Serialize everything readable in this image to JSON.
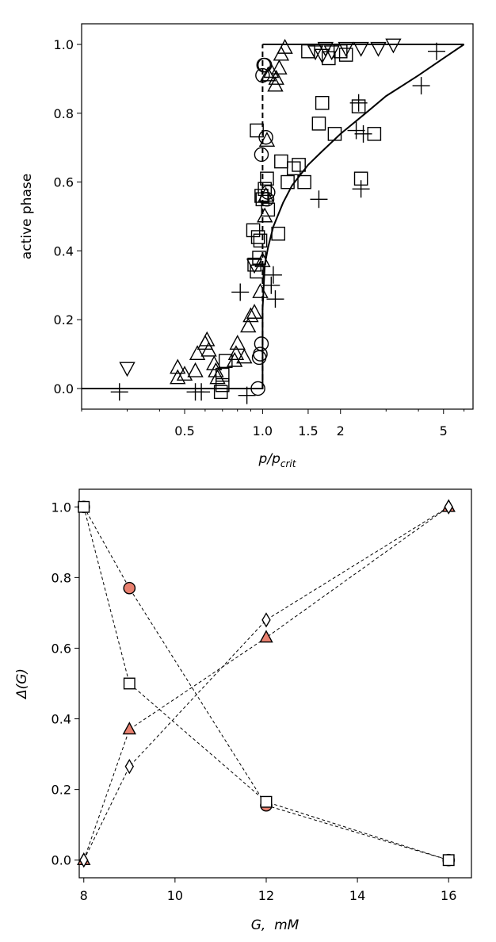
{
  "chart_data": [
    {
      "type": "scatter",
      "xscale": "log",
      "xlabel": "p/p_crit",
      "xlabel_main": "p/p",
      "xlabel_sub": "crit",
      "ylabel": "active phase",
      "xlim": [
        0.2,
        6.5
      ],
      "ylim": [
        -0.06,
        1.06
      ],
      "xticks": [
        0.5,
        1.0,
        1.5,
        2,
        5
      ],
      "xtick_labels": [
        "0.5",
        "1.0",
        "1.5",
        "2",
        "5"
      ],
      "yticks": [
        0.0,
        0.2,
        0.4,
        0.6,
        0.8,
        1.0
      ],
      "ytick_labels": [
        "0.0",
        "0.2",
        "0.4",
        "0.6",
        "0.8",
        "1.0"
      ],
      "series": [
        {
          "marker": "circle",
          "points": [
            [
              0.96,
              0.0
            ],
            [
              0.97,
              0.09
            ],
            [
              0.98,
              0.1
            ],
            [
              0.99,
              0.13
            ],
            [
              0.99,
              0.68
            ],
            [
              1.0,
              0.91
            ],
            [
              1.01,
              0.94
            ],
            [
              1.02,
              0.94
            ],
            [
              1.03,
              0.73
            ],
            [
              1.04,
              0.55
            ],
            [
              1.05,
              0.57
            ]
          ]
        },
        {
          "marker": "triangle-up",
          "points": [
            [
              0.47,
              0.03
            ],
            [
              0.47,
              0.06
            ],
            [
              0.5,
              0.04
            ],
            [
              0.55,
              0.05
            ],
            [
              0.56,
              0.1
            ],
            [
              0.6,
              0.13
            ],
            [
              0.61,
              0.14
            ],
            [
              0.62,
              0.11
            ],
            [
              0.65,
              0.07
            ],
            [
              0.66,
              0.05
            ],
            [
              0.67,
              0.03
            ],
            [
              0.78,
              0.08
            ],
            [
              0.79,
              0.1
            ],
            [
              0.8,
              0.13
            ],
            [
              0.85,
              0.09
            ],
            [
              0.88,
              0.18
            ],
            [
              0.9,
              0.21
            ],
            [
              0.93,
              0.22
            ],
            [
              0.98,
              0.28
            ],
            [
              1.0,
              0.37
            ],
            [
              1.02,
              0.5
            ],
            [
              1.03,
              0.56
            ],
            [
              1.04,
              0.72
            ],
            [
              1.05,
              0.91
            ],
            [
              1.08,
              0.92
            ],
            [
              1.12,
              0.88
            ],
            [
              1.13,
              0.9
            ],
            [
              1.16,
              0.93
            ],
            [
              1.18,
              0.97
            ],
            [
              1.22,
              0.99
            ]
          ]
        },
        {
          "marker": "triangle-down",
          "points": [
            [
              0.3,
              0.06
            ],
            [
              0.93,
              0.36
            ],
            [
              1.6,
              0.98
            ],
            [
              1.7,
              0.97
            ],
            [
              1.75,
              0.99
            ],
            [
              1.85,
              0.98
            ],
            [
              2.1,
              0.99
            ],
            [
              2.4,
              0.99
            ],
            [
              2.8,
              0.99
            ],
            [
              3.2,
              1.0
            ]
          ]
        },
        {
          "marker": "square",
          "points": [
            [
              0.69,
              -0.01
            ],
            [
              0.7,
              0.01
            ],
            [
              0.7,
              0.04
            ],
            [
              0.72,
              0.08
            ],
            [
              0.92,
              0.46
            ],
            [
              0.93,
              0.36
            ],
            [
              0.95,
              0.34
            ],
            [
              0.96,
              0.44
            ],
            [
              0.95,
              0.75
            ],
            [
              0.97,
              0.38
            ],
            [
              0.98,
              0.43
            ],
            [
              0.99,
              0.56
            ],
            [
              1.0,
              0.55
            ],
            [
              1.02,
              0.58
            ],
            [
              1.04,
              0.61
            ],
            [
              1.05,
              0.52
            ],
            [
              1.15,
              0.45
            ],
            [
              1.18,
              0.66
            ],
            [
              1.25,
              0.6
            ],
            [
              1.32,
              0.64
            ],
            [
              1.38,
              0.65
            ],
            [
              1.45,
              0.6
            ],
            [
              1.5,
              0.98
            ],
            [
              1.65,
              0.77
            ],
            [
              1.7,
              0.83
            ],
            [
              1.8,
              0.96
            ],
            [
              1.9,
              0.74
            ],
            [
              2.0,
              0.98
            ],
            [
              2.1,
              0.97
            ],
            [
              2.35,
              0.82
            ],
            [
              2.4,
              0.61
            ],
            [
              2.7,
              0.74
            ]
          ]
        },
        {
          "marker": "plus",
          "points": [
            [
              0.28,
              -0.01
            ],
            [
              0.55,
              -0.01
            ],
            [
              0.58,
              -0.01
            ],
            [
              0.82,
              0.28
            ],
            [
              0.87,
              -0.02
            ],
            [
              1.08,
              0.3
            ],
            [
              1.1,
              0.33
            ],
            [
              1.12,
              0.26
            ],
            [
              1.65,
              0.55
            ],
            [
              2.3,
              0.75
            ],
            [
              2.35,
              0.83
            ],
            [
              2.4,
              0.58
            ],
            [
              2.45,
              0.74
            ],
            [
              4.1,
              0.88
            ],
            [
              4.7,
              0.98
            ]
          ]
        }
      ],
      "lines": [
        {
          "style": "solid",
          "x": [
            0.2,
            1.0,
            1.0,
            1.02,
            1.05,
            1.1,
            1.2,
            1.3,
            1.5,
            1.7,
            2.0,
            2.5,
            3.0,
            4.0,
            5.0,
            6.0
          ],
          "y": [
            0.0,
            0.0,
            0.23,
            0.36,
            0.41,
            0.47,
            0.54,
            0.59,
            0.65,
            0.69,
            0.74,
            0.8,
            0.85,
            0.91,
            0.96,
            1.0
          ]
        },
        {
          "style": "dashed",
          "x": [
            1.0,
            1.0
          ],
          "y": [
            0.0,
            1.0
          ]
        },
        {
          "style": "solid",
          "x": [
            1.0,
            6.0
          ],
          "y": [
            1.0,
            1.0
          ]
        }
      ]
    },
    {
      "type": "line",
      "xlabel": "G,  mM",
      "ylabel": "Δ(G)",
      "xlim": [
        7.9,
        16.5
      ],
      "ylim": [
        -0.05,
        1.05
      ],
      "xticks": [
        8,
        10,
        12,
        14,
        16
      ],
      "xtick_labels": [
        "8",
        "10",
        "12",
        "14",
        "16"
      ],
      "yticks": [
        0.0,
        0.2,
        0.4,
        0.6,
        0.8,
        1.0
      ],
      "ytick_labels": [
        "0.0",
        "0.2",
        "0.4",
        "0.6",
        "0.8",
        "1.0"
      ],
      "series": [
        {
          "marker": "circle",
          "fill": "#e8806f",
          "x": [
            8,
            9,
            12,
            16
          ],
          "y": [
            1.0,
            0.77,
            0.155,
            0.0
          ]
        },
        {
          "marker": "square",
          "fill": "#ffffff",
          "x": [
            8,
            9,
            12,
            16
          ],
          "y": [
            1.0,
            0.5,
            0.165,
            0.0
          ]
        },
        {
          "marker": "triangle-up",
          "fill": "#e8806f",
          "x": [
            8,
            9,
            12,
            16
          ],
          "y": [
            0.0,
            0.37,
            0.63,
            1.0
          ]
        },
        {
          "marker": "diamond",
          "fill": "#ffffff",
          "x": [
            8,
            9,
            12,
            16
          ],
          "y": [
            0.0,
            0.265,
            0.68,
            1.0
          ]
        }
      ]
    }
  ]
}
